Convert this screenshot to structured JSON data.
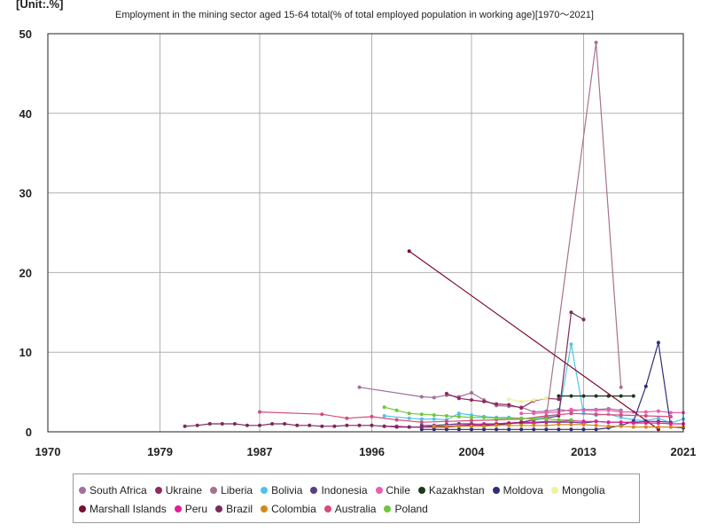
{
  "unit_label": "[Unit:.%]",
  "chart_data": {
    "type": "line",
    "title": "Employment in the mining sector aged 15-64 total(% of total employed population in working age)[1970～2021]",
    "xlim": [
      1970,
      2021
    ],
    "ylim": [
      0,
      50
    ],
    "x_ticks": [
      1970,
      1979,
      1987,
      1996,
      2004,
      2013,
      2021
    ],
    "y_ticks": [
      0,
      10,
      20,
      30,
      40,
      50
    ],
    "grid": true,
    "legend_position": "bottom",
    "series": [
      {
        "name": "South Africa",
        "color": "#a0709a",
        "x": [
          1995,
          2000,
          2001,
          2002,
          2003,
          2004,
          2005,
          2006,
          2007,
          2008,
          2009,
          2010,
          2011,
          2012,
          2013,
          2014,
          2015,
          2016
        ],
        "y": [
          5.6,
          4.4,
          4.3,
          4.6,
          4.4,
          4.9,
          4.0,
          3.3,
          3.2,
          3.1,
          2.5,
          2.6,
          2.8,
          2.6,
          2.8,
          2.8,
          2.9,
          2.7
        ]
      },
      {
        "name": "Ukraine",
        "color": "#8e2a5e",
        "x": [
          2002,
          2003,
          2004,
          2005,
          2006,
          2007,
          2008,
          2009,
          2010,
          2011
        ],
        "y": [
          4.8,
          4.2,
          4.0,
          3.8,
          3.5,
          3.4,
          3.0,
          3.9,
          4.2,
          4.1
        ]
      },
      {
        "name": "Liberia",
        "color": "#a77290",
        "x": [
          2010,
          2014,
          2016
        ],
        "y": [
          1.8,
          48.9,
          5.6
        ]
      },
      {
        "name": "Bolivia",
        "color": "#4fc3e8",
        "x": [
          1997,
          1999,
          2000,
          2001,
          2002,
          2003,
          2004,
          2005,
          2006,
          2007,
          2008,
          2009,
          2011,
          2012,
          2013,
          2014,
          2015,
          2016,
          2017,
          2018,
          2019,
          2020,
          2021
        ],
        "y": [
          2.0,
          1.7,
          1.6,
          1.6,
          1.5,
          2.3,
          2.1,
          1.9,
          1.8,
          1.8,
          1.7,
          1.6,
          2.2,
          11.0,
          2.3,
          2.1,
          2.2,
          1.8,
          1.5,
          1.4,
          1.7,
          1.1,
          1.6
        ]
      },
      {
        "name": "Indonesia",
        "color": "#5a3c86",
        "x": [
          2000,
          2001,
          2002,
          2003,
          2004,
          2005,
          2006,
          2007,
          2008,
          2009,
          2010,
          2011,
          2012,
          2013,
          2014,
          2015,
          2016,
          2017,
          2018,
          2019,
          2020
        ],
        "y": [
          0.8,
          0.8,
          0.9,
          1.0,
          1.0,
          0.9,
          1.0,
          1.1,
          1.1,
          1.1,
          1.2,
          1.2,
          1.2,
          1.1,
          1.3,
          1.2,
          1.2,
          1.2,
          1.3,
          1.3,
          1.2
        ]
      },
      {
        "name": "Chile",
        "color": "#e85fb0",
        "x": [
          2008,
          2009,
          2010,
          2011,
          2012,
          2013,
          2014,
          2015,
          2016,
          2017,
          2018,
          2019,
          2020,
          2021
        ],
        "y": [
          2.3,
          2.3,
          2.4,
          2.5,
          2.8,
          2.7,
          2.7,
          2.7,
          2.5,
          2.5,
          2.5,
          2.6,
          2.4,
          2.4
        ]
      },
      {
        "name": "Kazakhstan",
        "color": "#1c3a1c",
        "x": [
          2011,
          2012,
          2013,
          2014,
          2015,
          2016,
          2017
        ],
        "y": [
          4.5,
          4.5,
          4.5,
          4.5,
          4.5,
          4.5,
          4.5
        ]
      },
      {
        "name": "Moldova",
        "color": "#2e2e78",
        "x": [
          2000,
          2001,
          2002,
          2003,
          2004,
          2005,
          2006,
          2007,
          2008,
          2009,
          2010,
          2011,
          2012,
          2013,
          2014,
          2015,
          2016,
          2017,
          2018,
          2019,
          2020,
          2021
        ],
        "y": [
          0.3,
          0.3,
          0.3,
          0.3,
          0.3,
          0.3,
          0.3,
          0.3,
          0.3,
          0.3,
          0.3,
          0.3,
          0.3,
          0.3,
          0.3,
          0.5,
          0.8,
          1.3,
          5.7,
          11.2,
          0.6,
          0.5
        ]
      },
      {
        "name": "Mongolia",
        "color": "#f0f0a0",
        "x": [
          2007,
          2008,
          2009,
          2010
        ],
        "y": [
          4.1,
          3.8,
          4.0,
          4.2
        ]
      },
      {
        "name": "Marshall Islands",
        "color": "#7a0f2e",
        "x": [
          1999,
          2019
        ],
        "y": [
          22.7,
          0.3
        ]
      },
      {
        "name": "Peru",
        "color": "#e01ea0",
        "x": [
          1997,
          1998,
          1999,
          2000,
          2001,
          2002,
          2003,
          2004,
          2005,
          2006,
          2007,
          2008,
          2009,
          2010,
          2011,
          2012,
          2013,
          2014,
          2015,
          2016,
          2017,
          2018,
          2019,
          2020,
          2021
        ],
        "y": [
          0.7,
          0.7,
          0.6,
          0.6,
          0.7,
          0.7,
          0.8,
          0.9,
          1.0,
          1.0,
          1.1,
          1.2,
          1.2,
          1.3,
          1.3,
          1.4,
          1.3,
          1.3,
          1.2,
          1.2,
          1.1,
          1.1,
          1.1,
          1.0,
          1.0
        ]
      },
      {
        "name": "Brazil",
        "color": "#7a2a5a",
        "x": [
          1981,
          1982,
          1983,
          1984,
          1985,
          1986,
          1987,
          1988,
          1989,
          1990,
          1991,
          1992,
          1993,
          1994,
          1995,
          1996,
          1997,
          1998,
          1999,
          2000,
          2001,
          2002,
          2003,
          2004,
          2005,
          2006,
          2007,
          2008,
          2009,
          2010,
          2011,
          2012,
          2013
        ],
        "y": [
          0.7,
          0.8,
          1.0,
          1.0,
          1.0,
          0.8,
          0.8,
          1.0,
          1.0,
          0.8,
          0.8,
          0.7,
          0.7,
          0.8,
          0.8,
          0.8,
          0.7,
          0.6,
          0.6,
          0.6,
          0.6,
          0.6,
          0.7,
          0.8,
          0.8,
          0.9,
          1.0,
          1.2,
          1.5,
          1.7,
          2.0,
          15.0,
          14.1
        ]
      },
      {
        "name": "Colombia",
        "color": "#d4881c",
        "x": [
          2001,
          2002,
          2003,
          2004,
          2005,
          2006,
          2007,
          2008,
          2009,
          2010,
          2011,
          2012,
          2013,
          2014,
          2015,
          2016,
          2017,
          2018,
          2019,
          2020,
          2021
        ],
        "y": [
          0.7,
          0.7,
          0.7,
          0.7,
          0.7,
          0.8,
          0.8,
          0.8,
          0.8,
          0.8,
          0.9,
          0.9,
          0.9,
          0.8,
          0.7,
          0.7,
          0.6,
          0.6,
          0.6,
          0.6,
          0.6
        ]
      },
      {
        "name": "Australia",
        "color": "#d84a7a",
        "x": [
          1987,
          1992,
          1994,
          1996,
          1998,
          2000,
          2002,
          2004,
          2006,
          2008,
          2010,
          2012,
          2014,
          2016,
          2018,
          2020
        ],
        "y": [
          2.5,
          2.2,
          1.7,
          1.9,
          1.5,
          1.2,
          1.3,
          1.4,
          1.5,
          1.6,
          2.0,
          2.3,
          2.2,
          2.1,
          2.0,
          1.9
        ]
      },
      {
        "name": "Poland",
        "color": "#6fc83c",
        "x": [
          1997,
          1998,
          1999,
          2000,
          2001,
          2002,
          2003,
          2004,
          2005,
          2006,
          2007,
          2008,
          2009,
          2010,
          2011,
          2012
        ],
        "y": [
          3.1,
          2.7,
          2.3,
          2.2,
          2.1,
          2.0,
          1.9,
          1.8,
          1.8,
          1.7,
          1.7,
          1.7,
          1.6,
          1.6,
          1.5,
          1.5
        ]
      }
    ]
  }
}
